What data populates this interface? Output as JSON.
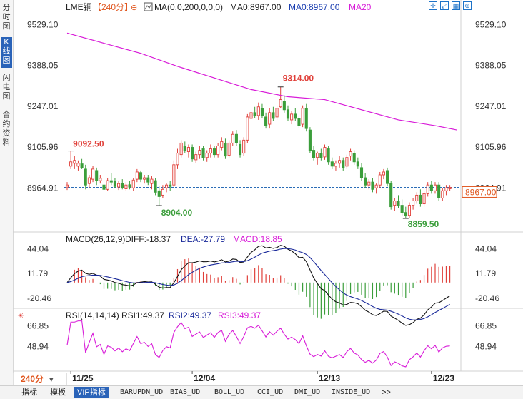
{
  "vertical_tabs": [
    {
      "label": "分时图",
      "lines": [
        "分",
        "时",
        "图"
      ],
      "active": false
    },
    {
      "label": "K线图",
      "lines": [
        "K",
        "线",
        "图"
      ],
      "active": true
    },
    {
      "label": "闪电图",
      "lines": [
        "闪",
        "电",
        "图"
      ],
      "active": false
    },
    {
      "label": "合约资料",
      "lines": [
        "合",
        "约",
        "资",
        "料"
      ],
      "active": false
    }
  ],
  "legend": {
    "symbol": "LME铜",
    "period": "【240分】",
    "ma_params": "MA(0,0,200,0,0,0)",
    "ma0": "MA0:8967.00",
    "ma0_blue": "MA0:8967.00",
    "ma20": "MA20"
  },
  "macd_legend": {
    "label": "MACD(26,12,9)",
    "diff": "DIFF:-18.37",
    "dea": "DEA:-27.79",
    "macd": "MACD:18.85"
  },
  "rsi_legend": {
    "label": "RSI(14,14,14)",
    "rsi1": "RSI1:49.37",
    "rsi2": "RSI2:49.37",
    "rsi3": "RSI3:49.37"
  },
  "price_axis": [
    "9529.10",
    "9388.05",
    "9247.01",
    "9105.96",
    "8964.91"
  ],
  "last_price": "8967.00",
  "annotations": {
    "high_left": "9092.50",
    "low_left": "8904.00",
    "peak": "9314.00",
    "low_right": "8859.50"
  },
  "macd_axis": [
    "44.04",
    "11.79",
    "-20.46"
  ],
  "rsi_axis": [
    "66.85",
    "48.94"
  ],
  "date_labels": [
    "11/25",
    "12/04",
    "12/13",
    "12/23"
  ],
  "period_selector": "240分",
  "bottom_tabs": [
    {
      "label": "指标",
      "active": false,
      "mono": false
    },
    {
      "label": "模板",
      "active": false,
      "mono": false
    },
    {
      "label": "VIP指标",
      "active": true,
      "mono": false
    },
    {
      "label": "BARUPDN_UD",
      "active": false,
      "mono": true
    },
    {
      "label": "BIAS_UD",
      "active": false,
      "mono": true
    },
    {
      "label": "BOLL_UD",
      "active": false,
      "mono": true
    },
    {
      "label": "CCI_UD",
      "active": false,
      "mono": true
    },
    {
      "label": "DMI_UD",
      "active": false,
      "mono": true
    },
    {
      "label": "INSIDE_UD",
      "active": false,
      "mono": true
    },
    {
      "label": ">>",
      "active": false,
      "mono": false
    }
  ],
  "colors": {
    "up": "#e0403a",
    "down": "#3b9e3b",
    "ma20": "#d81bd8",
    "diff": "#111111",
    "dea": "#1a2a9a",
    "accent": "#e0561f",
    "blue": "#1a3db0"
  },
  "chart_data": {
    "type": "candlestick",
    "price_range": [
      8830,
      9560
    ],
    "candles": [
      {
        "o": 8968,
        "h": 8985,
        "l": 8958,
        "c": 8975
      },
      {
        "o": 9040,
        "h": 9092.5,
        "l": 9030,
        "c": 9055
      },
      {
        "o": 9050,
        "h": 9075,
        "l": 9030,
        "c": 9060
      },
      {
        "o": 9040,
        "h": 9060,
        "l": 9025,
        "c": 9050
      },
      {
        "o": 9048,
        "h": 9065,
        "l": 9030,
        "c": 9035
      },
      {
        "o": 9030,
        "h": 9045,
        "l": 8960,
        "c": 8975
      },
      {
        "o": 8980,
        "h": 9010,
        "l": 8965,
        "c": 9000
      },
      {
        "o": 8995,
        "h": 9040,
        "l": 8985,
        "c": 9030
      },
      {
        "o": 9025,
        "h": 9035,
        "l": 8975,
        "c": 8990
      },
      {
        "o": 8990,
        "h": 9010,
        "l": 8980,
        "c": 8998
      },
      {
        "o": 8975,
        "h": 8990,
        "l": 8945,
        "c": 8960
      },
      {
        "o": 8960,
        "h": 9000,
        "l": 8955,
        "c": 8990
      },
      {
        "o": 8990,
        "h": 9015,
        "l": 8975,
        "c": 8985
      },
      {
        "o": 8988,
        "h": 9000,
        "l": 8965,
        "c": 8970
      },
      {
        "o": 8968,
        "h": 8990,
        "l": 8958,
        "c": 8980
      },
      {
        "o": 8980,
        "h": 8995,
        "l": 8960,
        "c": 8965
      },
      {
        "o": 8962,
        "h": 8985,
        "l": 8955,
        "c": 8975
      },
      {
        "o": 8976,
        "h": 8990,
        "l": 8960,
        "c": 8968
      },
      {
        "o": 8965,
        "h": 9000,
        "l": 8955,
        "c": 8992
      },
      {
        "o": 8995,
        "h": 9030,
        "l": 8985,
        "c": 9020
      },
      {
        "o": 9018,
        "h": 9025,
        "l": 8985,
        "c": 8995
      },
      {
        "o": 8995,
        "h": 9010,
        "l": 8980,
        "c": 9000
      },
      {
        "o": 9000,
        "h": 9010,
        "l": 8975,
        "c": 8985
      },
      {
        "o": 8980,
        "h": 9005,
        "l": 8960,
        "c": 8995
      },
      {
        "o": 8990,
        "h": 9000,
        "l": 8940,
        "c": 8950
      },
      {
        "o": 8955,
        "h": 8970,
        "l": 8904,
        "c": 8935
      },
      {
        "o": 8940,
        "h": 8975,
        "l": 8930,
        "c": 8960
      },
      {
        "o": 8965,
        "h": 8980,
        "l": 8950,
        "c": 8975
      },
      {
        "o": 8975,
        "h": 8990,
        "l": 8955,
        "c": 8970
      },
      {
        "o": 8975,
        "h": 9060,
        "l": 8968,
        "c": 9045
      },
      {
        "o": 9045,
        "h": 9100,
        "l": 9030,
        "c": 9085
      },
      {
        "o": 9080,
        "h": 9130,
        "l": 9070,
        "c": 9120
      },
      {
        "o": 9110,
        "h": 9125,
        "l": 9085,
        "c": 9095
      },
      {
        "o": 9090,
        "h": 9115,
        "l": 9070,
        "c": 9105
      },
      {
        "o": 9105,
        "h": 9115,
        "l": 9055,
        "c": 9065
      },
      {
        "o": 9062,
        "h": 9090,
        "l": 9050,
        "c": 9080
      },
      {
        "o": 9080,
        "h": 9110,
        "l": 9065,
        "c": 9095
      },
      {
        "o": 9100,
        "h": 9110,
        "l": 9060,
        "c": 9070
      },
      {
        "o": 9070,
        "h": 9095,
        "l": 9055,
        "c": 9085
      },
      {
        "o": 9085,
        "h": 9115,
        "l": 9070,
        "c": 9100
      },
      {
        "o": 9100,
        "h": 9110,
        "l": 9070,
        "c": 9080
      },
      {
        "o": 9080,
        "h": 9120,
        "l": 9070,
        "c": 9110
      },
      {
        "o": 9105,
        "h": 9140,
        "l": 9095,
        "c": 9125
      },
      {
        "o": 9120,
        "h": 9135,
        "l": 9065,
        "c": 9075
      },
      {
        "o": 9078,
        "h": 9130,
        "l": 9070,
        "c": 9120
      },
      {
        "o": 9120,
        "h": 9160,
        "l": 9110,
        "c": 9150
      },
      {
        "o": 9150,
        "h": 9165,
        "l": 9110,
        "c": 9120
      },
      {
        "o": 9115,
        "h": 9130,
        "l": 9070,
        "c": 9080
      },
      {
        "o": 9085,
        "h": 9140,
        "l": 9075,
        "c": 9130
      },
      {
        "o": 9130,
        "h": 9220,
        "l": 9120,
        "c": 9210
      },
      {
        "o": 9205,
        "h": 9240,
        "l": 9195,
        "c": 9225
      },
      {
        "o": 9225,
        "h": 9245,
        "l": 9205,
        "c": 9215
      },
      {
        "o": 9215,
        "h": 9260,
        "l": 9200,
        "c": 9245
      },
      {
        "o": 9240,
        "h": 9255,
        "l": 9205,
        "c": 9215
      },
      {
        "o": 9210,
        "h": 9225,
        "l": 9170,
        "c": 9180
      },
      {
        "o": 9185,
        "h": 9240,
        "l": 9170,
        "c": 9225
      },
      {
        "o": 9225,
        "h": 9245,
        "l": 9195,
        "c": 9205
      },
      {
        "o": 9210,
        "h": 9250,
        "l": 9200,
        "c": 9240
      },
      {
        "o": 9245,
        "h": 9314,
        "l": 9240,
        "c": 9270
      },
      {
        "o": 9265,
        "h": 9285,
        "l": 9225,
        "c": 9235
      },
      {
        "o": 9235,
        "h": 9250,
        "l": 9195,
        "c": 9205
      },
      {
        "o": 9200,
        "h": 9230,
        "l": 9185,
        "c": 9220
      },
      {
        "o": 9220,
        "h": 9240,
        "l": 9195,
        "c": 9205
      },
      {
        "o": 9205,
        "h": 9215,
        "l": 9170,
        "c": 9180
      },
      {
        "o": 9185,
        "h": 9250,
        "l": 9175,
        "c": 9240
      },
      {
        "o": 9240,
        "h": 9255,
        "l": 9160,
        "c": 9170
      },
      {
        "o": 9165,
        "h": 9175,
        "l": 9085,
        "c": 9095
      },
      {
        "o": 9095,
        "h": 9110,
        "l": 9060,
        "c": 9070
      },
      {
        "o": 9070,
        "h": 9090,
        "l": 9045,
        "c": 9085
      },
      {
        "o": 9085,
        "h": 9100,
        "l": 9060,
        "c": 9070
      },
      {
        "o": 9072,
        "h": 9115,
        "l": 9062,
        "c": 9105
      },
      {
        "o": 9100,
        "h": 9110,
        "l": 9045,
        "c": 9055
      },
      {
        "o": 9055,
        "h": 9070,
        "l": 9030,
        "c": 9040
      },
      {
        "o": 9040,
        "h": 9060,
        "l": 9025,
        "c": 9050
      },
      {
        "o": 9050,
        "h": 9075,
        "l": 9035,
        "c": 9060
      },
      {
        "o": 9060,
        "h": 9070,
        "l": 9025,
        "c": 9035
      },
      {
        "o": 9040,
        "h": 9080,
        "l": 9030,
        "c": 9070
      },
      {
        "o": 9075,
        "h": 9100,
        "l": 9060,
        "c": 9090
      },
      {
        "o": 9085,
        "h": 9095,
        "l": 9045,
        "c": 9055
      },
      {
        "o": 9055,
        "h": 9070,
        "l": 9030,
        "c": 9040
      },
      {
        "o": 9035,
        "h": 9050,
        "l": 8990,
        "c": 9000
      },
      {
        "o": 9000,
        "h": 9015,
        "l": 8965,
        "c": 8975
      },
      {
        "o": 8975,
        "h": 8995,
        "l": 8960,
        "c": 8985
      },
      {
        "o": 8985,
        "h": 9000,
        "l": 8950,
        "c": 8960
      },
      {
        "o": 8965,
        "h": 8980,
        "l": 8945,
        "c": 8975
      },
      {
        "o": 8975,
        "h": 9020,
        "l": 8965,
        "c": 9010
      },
      {
        "o": 9010,
        "h": 9030,
        "l": 8995,
        "c": 9020
      },
      {
        "o": 9025,
        "h": 9035,
        "l": 8970,
        "c": 8980
      },
      {
        "o": 8980,
        "h": 8990,
        "l": 8890,
        "c": 8900
      },
      {
        "o": 8905,
        "h": 8930,
        "l": 8885,
        "c": 8920
      },
      {
        "o": 8920,
        "h": 8940,
        "l": 8895,
        "c": 8905
      },
      {
        "o": 8905,
        "h": 8925,
        "l": 8870,
        "c": 8880
      },
      {
        "o": 8880,
        "h": 8900,
        "l": 8859.5,
        "c": 8870
      },
      {
        "o": 8870,
        "h": 8915,
        "l": 8862,
        "c": 8905
      },
      {
        "o": 8905,
        "h": 8930,
        "l": 8890,
        "c": 8920
      },
      {
        "o": 8920,
        "h": 8950,
        "l": 8910,
        "c": 8940
      },
      {
        "o": 8940,
        "h": 8960,
        "l": 8900,
        "c": 8910
      },
      {
        "o": 8910,
        "h": 8955,
        "l": 8900,
        "c": 8945
      },
      {
        "o": 8945,
        "h": 8985,
        "l": 8935,
        "c": 8975
      },
      {
        "o": 8975,
        "h": 8990,
        "l": 8945,
        "c": 8955
      },
      {
        "o": 8955,
        "h": 8985,
        "l": 8945,
        "c": 8975
      },
      {
        "o": 8975,
        "h": 8985,
        "l": 8920,
        "c": 8930
      },
      {
        "o": 8930,
        "h": 8965,
        "l": 8920,
        "c": 8955
      },
      {
        "o": 8955,
        "h": 8975,
        "l": 8940,
        "c": 8965
      },
      {
        "o": 8962,
        "h": 8975,
        "l": 8955,
        "c": 8967
      }
    ],
    "ma20": [
      [
        0,
        9500
      ],
      [
        10,
        9465
      ],
      [
        20,
        9430
      ],
      [
        30,
        9385
      ],
      [
        40,
        9345
      ],
      [
        50,
        9305
      ],
      [
        60,
        9280
      ],
      [
        70,
        9270
      ],
      [
        80,
        9235
      ],
      [
        90,
        9200
      ],
      [
        100,
        9180
      ],
      [
        106,
        9165
      ]
    ],
    "macd_range": [
      -30,
      52
    ],
    "rsi_range": [
      30,
      72
    ]
  }
}
